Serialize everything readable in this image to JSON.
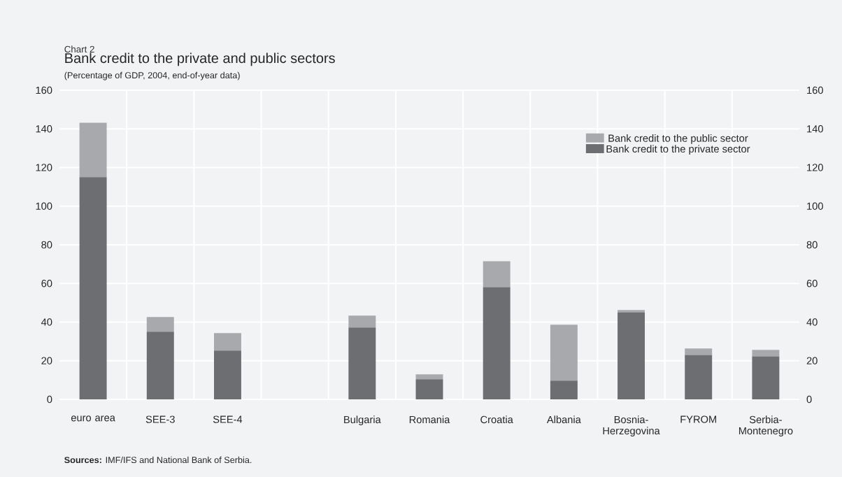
{
  "chart_data": {
    "type": "bar",
    "stacked": true,
    "title": "Bank credit to the private and public sectors",
    "subtitle": "(Percentage of GDP, 2004, end-of-year data)",
    "annotations": [
      "Chart  2",
      "**Sources:** IMF/IFS and National Bank of Serbia."
    ],
    "categories": [
      "euro area",
      "SEE-3",
      "SEE-4",
      null,
      "Bulgaria",
      "Romania",
      "Croatia",
      "Albania",
      "Bosnia-Herzegovina",
      "FYROM",
      "Serbia-Montenegro"
    ],
    "series": [
      {
        "name": "Bank credit to the private sector",
        "color": "#6d6e72",
        "values": [
          115,
          35,
          25.2,
          null,
          37.2,
          10.4,
          58.1,
          9.7,
          45.1,
          23,
          22.3
        ]
      },
      {
        "name": "Bank credit to the public sector",
        "color": "#a8a9ac",
        "values": [
          28.2,
          7.6,
          9.1,
          null,
          6.1,
          2.5,
          13.4,
          28.9,
          1.1,
          3.3,
          3.3
        ]
      }
    ],
    "ylim": [
      0,
      160
    ],
    "yticks": [
      0,
      20,
      40,
      60,
      80,
      100,
      120,
      140,
      160
    ],
    "y2lim": [
      0,
      160
    ],
    "y2ticks": [
      0,
      20,
      40,
      60,
      80,
      100,
      120,
      140,
      160
    ],
    "grid": true,
    "legend": "top right"
  }
}
